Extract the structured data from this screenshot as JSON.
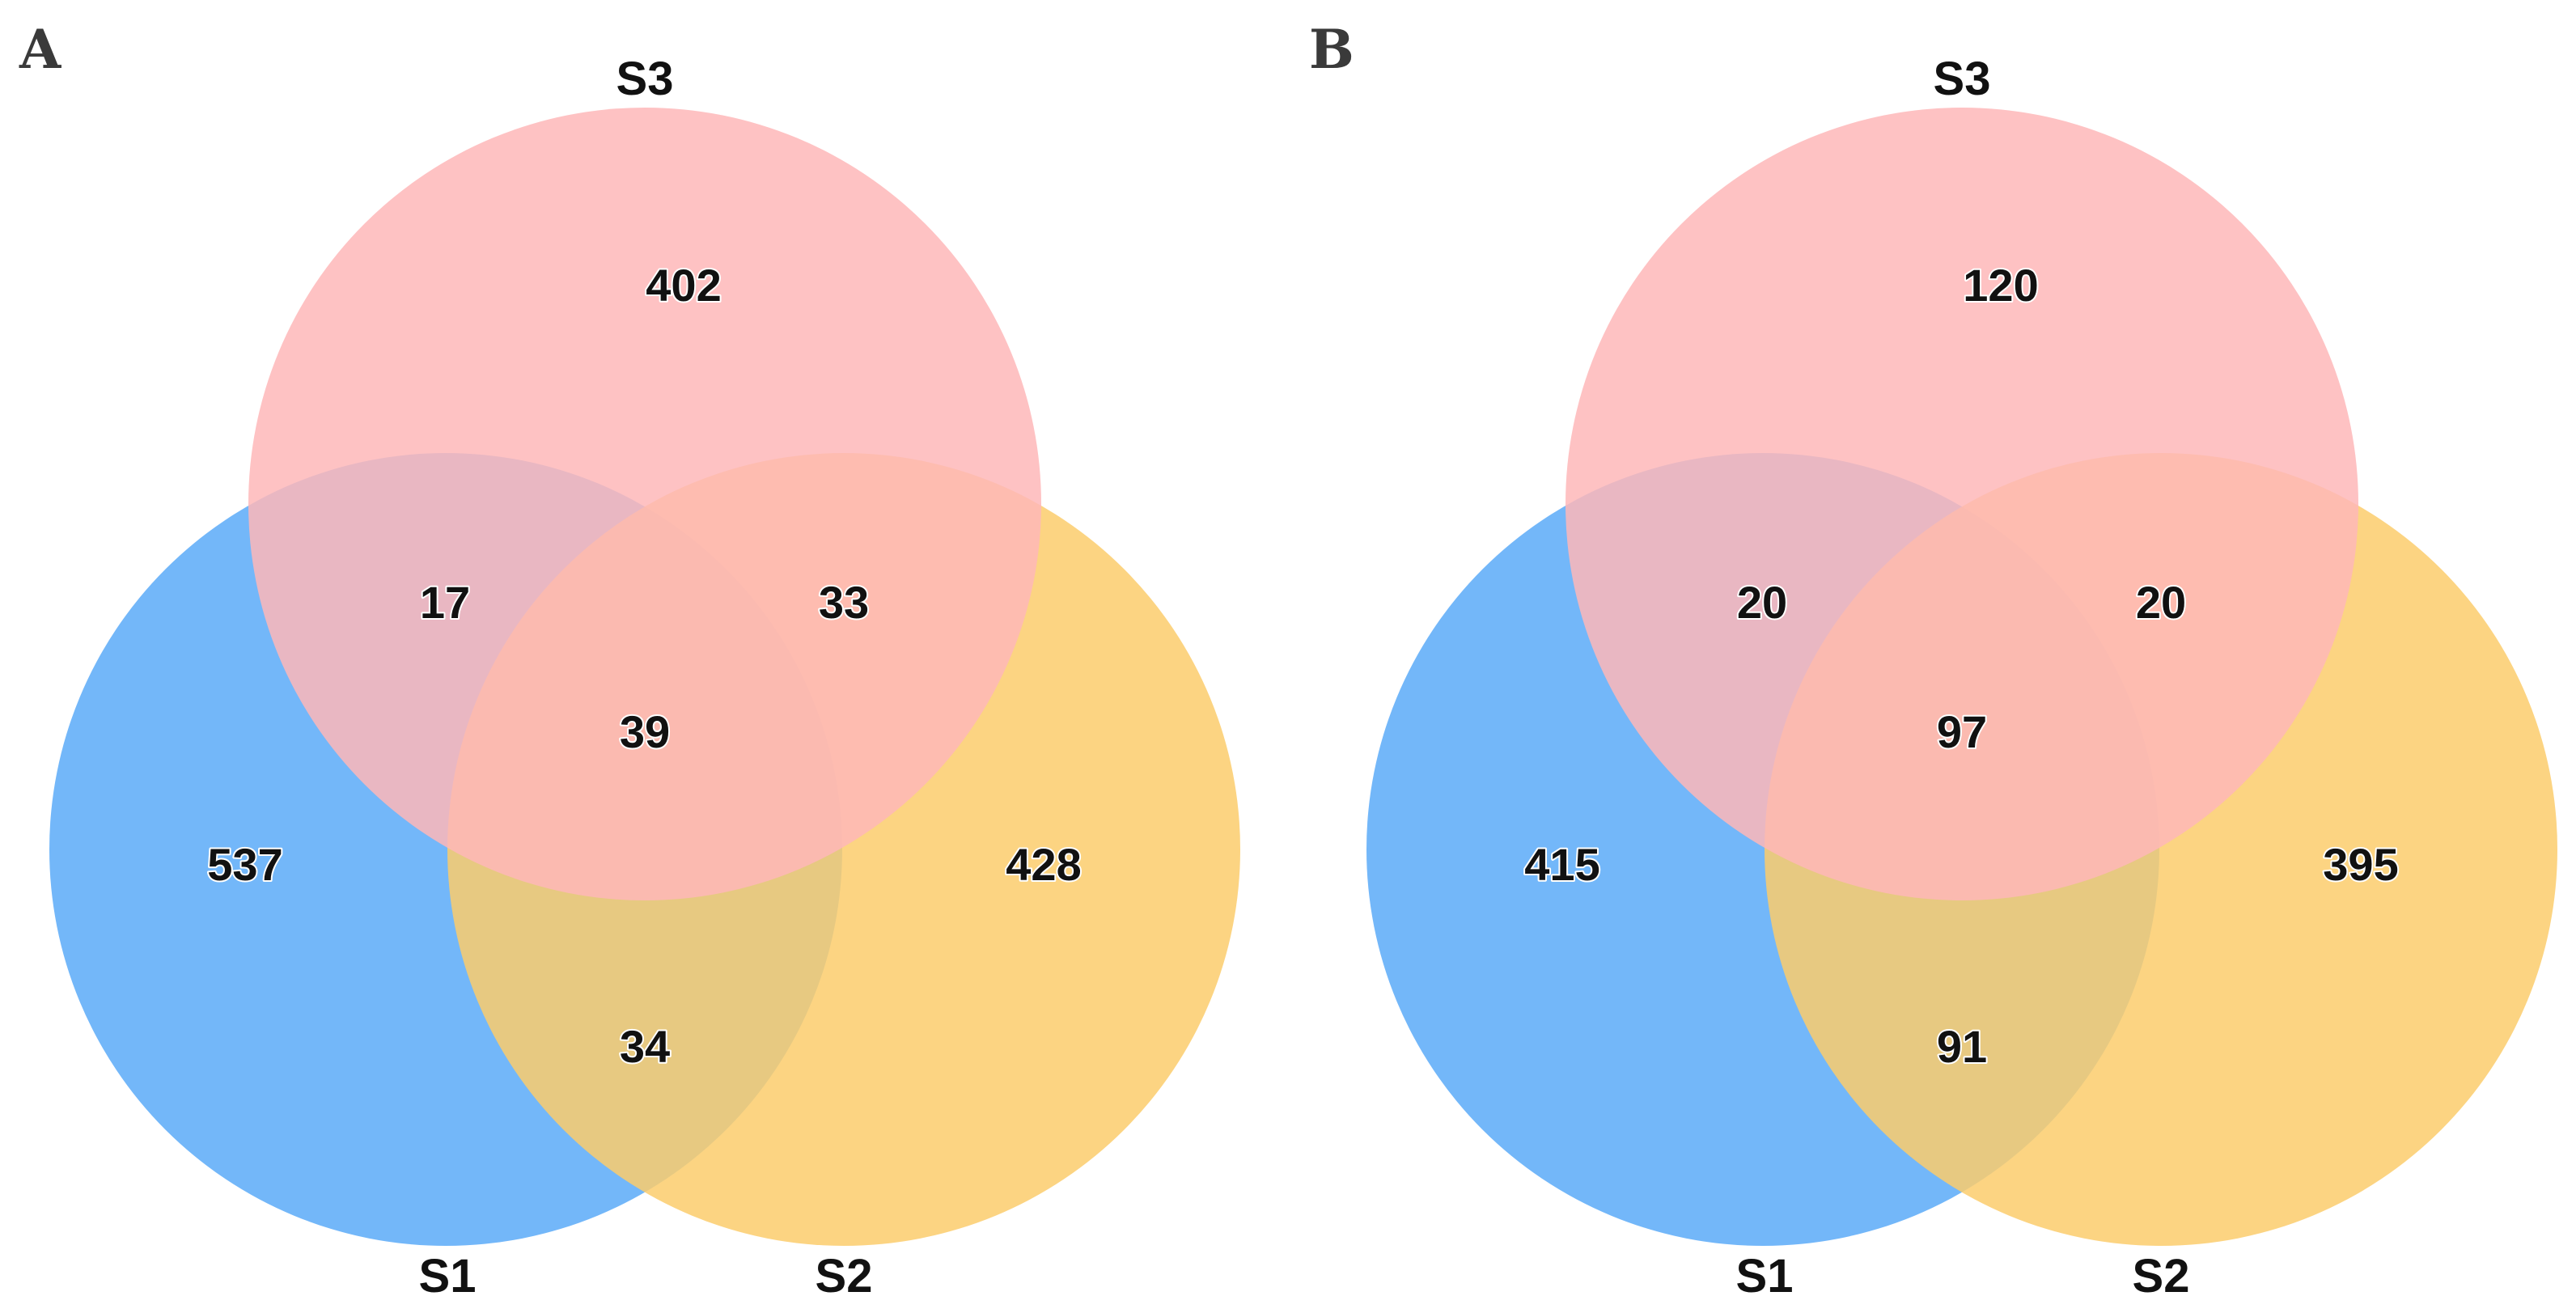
{
  "colors": {
    "S1": "#5aaaf8",
    "S2": "#fbcd6c",
    "S3": "#feb7b8"
  },
  "panels": [
    {
      "letter": "A",
      "sets": {
        "S1": "S1",
        "S2": "S2",
        "S3": "S3"
      },
      "counts": {
        "only_S3": "402",
        "S1_S3": "17",
        "S2_S3": "33",
        "S1_S2_S3": "39",
        "only_S1": "537",
        "only_S2": "428",
        "S1_S2": "34"
      }
    },
    {
      "letter": "B",
      "sets": {
        "S1": "S1",
        "S2": "S2",
        "S3": "S3"
      },
      "counts": {
        "only_S3": "120",
        "S1_S3": "20",
        "S2_S3": "20",
        "S1_S2_S3": "97",
        "only_S1": "415",
        "only_S2": "395",
        "S1_S2": "91"
      }
    }
  ]
}
